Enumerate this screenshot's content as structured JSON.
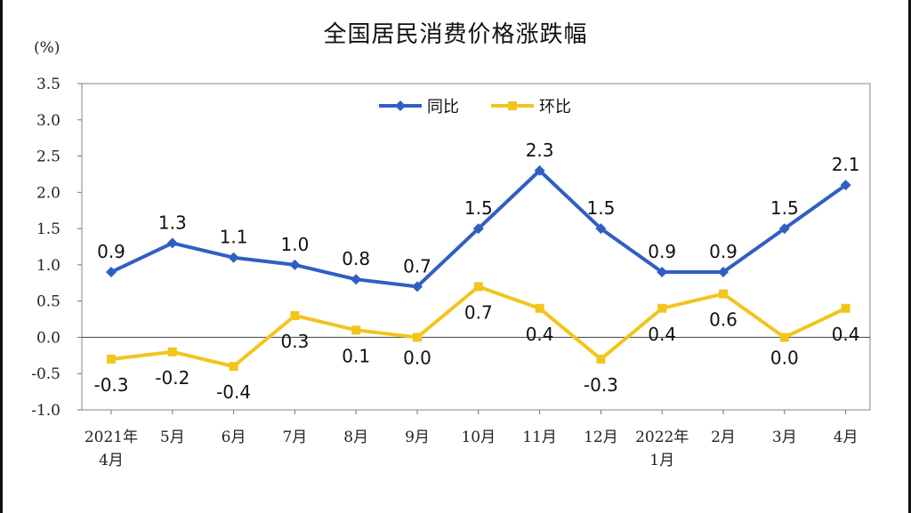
{
  "chart_data": {
    "type": "line",
    "title": "全国居民消费价格涨跌幅",
    "ylabel": "(%)",
    "categories": [
      "2021年|4月",
      "5月",
      "6月",
      "7月",
      "8月",
      "9月",
      "10月",
      "11月",
      "12月",
      "2022年|1月",
      "2月",
      "3月",
      "4月"
    ],
    "series": [
      {
        "name": "同比",
        "color": "#2f5fc4",
        "marker": "diamond",
        "values": [
          0.9,
          1.3,
          1.1,
          1.0,
          0.8,
          0.7,
          1.5,
          2.3,
          1.5,
          0.9,
          0.9,
          1.5,
          2.1
        ],
        "labels": [
          "0.9",
          "1.3",
          "1.1",
          "1.0",
          "0.8",
          "0.7",
          "1.5",
          "2.3",
          "1.5",
          "0.9",
          "0.9",
          "1.5",
          "2.1"
        ]
      },
      {
        "name": "环比",
        "color": "#f2c51d",
        "marker": "square",
        "values": [
          -0.3,
          -0.2,
          -0.4,
          0.3,
          0.1,
          0.0,
          0.7,
          0.4,
          -0.3,
          0.4,
          0.6,
          0.0,
          0.4
        ],
        "labels": [
          "-0.3",
          "-0.2",
          "-0.4",
          "0.3",
          "0.1",
          "0.0",
          "0.7",
          "0.4",
          "-0.3",
          "0.4",
          "0.6",
          "0.0",
          "0.4"
        ]
      }
    ],
    "ylim": [
      -1.0,
      3.5
    ],
    "yticks": [
      "3.5",
      "3.0",
      "2.5",
      "2.0",
      "1.5",
      "1.0",
      "0.5",
      "0.0",
      "-0.5",
      "-1.0"
    ],
    "grid": false,
    "legend_position": "top-center"
  }
}
